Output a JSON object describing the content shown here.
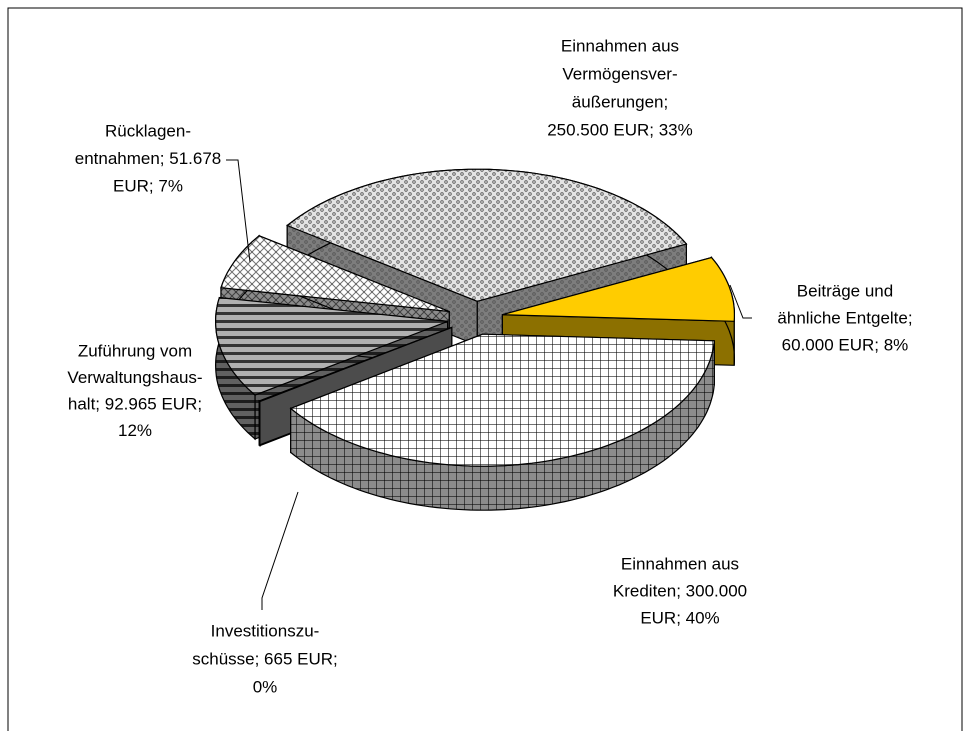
{
  "chart_data": {
    "type": "pie3d",
    "categories": [
      "Einnahmen aus Vermögensveräußerungen",
      "Beiträge und ähnliche Entgelte",
      "Einnahmen aus Krediten",
      "Investitionszuschüsse",
      "Zuführung vom Verwaltungshaushalt",
      "Rücklagenentnahmen"
    ],
    "values": [
      250500,
      60000,
      300000,
      665,
      92965,
      51678
    ],
    "colors": [
      "#e4e4e4",
      "#ffcc00",
      "#ffffff",
      "#8a8a8a",
      "#b0b0b0",
      "#ffffff"
    ],
    "data_labels": [
      [
        "Einnahmen aus",
        "Vermögensver-",
        "äußerungen;",
        "250.500 EUR; 33%"
      ],
      [
        "Beiträge und",
        "ähnliche Entgelte;",
        "60.000 EUR; 8%"
      ],
      [
        "Einnahmen aus",
        "Krediten; 300.000",
        "EUR; 40%"
      ],
      [
        "Investitionszu-",
        "schüsse; 665 EUR;",
        "0%"
      ],
      [
        "Zuführung vom",
        "Verwaltungshaus-",
        "halt; 92.965 EUR;",
        "12%"
      ],
      [
        "Rücklagen-",
        "entnahmen; 51.678",
        "EUR; 7%"
      ]
    ]
  }
}
